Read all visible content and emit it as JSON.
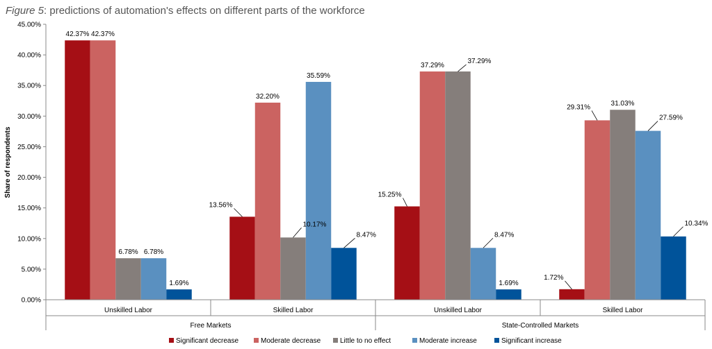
{
  "caption": {
    "figure": "Figure 5",
    "rest": ": predictions of automation's effects on different parts of the workforce"
  },
  "chart_data": {
    "type": "bar",
    "ylabel": "Share of respondents",
    "ylim": [
      0,
      45
    ],
    "yticks": [
      "0.00%",
      "5.00%",
      "10.00%",
      "15.00%",
      "20.00%",
      "25.00%",
      "30.00%",
      "35.00%",
      "40.00%",
      "45.00%"
    ],
    "grid": false,
    "legend_position": "bottom",
    "groups": [
      {
        "name": "Free Markets",
        "categories": [
          "Unskilled Labor",
          "Skilled Labor"
        ]
      },
      {
        "name": "State-Controlled Markets",
        "categories": [
          "Unskilled Labor",
          "Skilled Labor"
        ]
      }
    ],
    "categories": [
      "Unskilled Labor",
      "Skilled Labor",
      "Unskilled Labor",
      "Skilled Labor"
    ],
    "series": [
      {
        "name": "Significant decrease",
        "color": "#a50f15",
        "values": [
          42.37,
          13.56,
          15.25,
          1.72
        ],
        "labels": [
          "42.37%",
          "13.56%",
          "15.25%",
          "1.72%"
        ],
        "show_label": [
          true,
          true,
          true,
          true
        ]
      },
      {
        "name": "Moderate decrease",
        "color": "#cb6361",
        "values": [
          42.37,
          32.2,
          37.29,
          29.31
        ],
        "labels": [
          "42.37%",
          "32.20%",
          "37.29%",
          "29.31%"
        ],
        "show_label": [
          true,
          true,
          true,
          true
        ]
      },
      {
        "name": "Little to no effect",
        "color": "#857e7b",
        "values": [
          6.78,
          10.17,
          37.29,
          31.03
        ],
        "labels": [
          "6.78%",
          "10.17%",
          "37.29%",
          "31.03%"
        ],
        "show_label": [
          true,
          true,
          true,
          true
        ]
      },
      {
        "name": "Moderate increase",
        "color": "#5a90c0",
        "values": [
          6.78,
          35.59,
          8.47,
          27.59
        ],
        "labels": [
          "6.78%",
          "35.59%",
          "8.47%",
          "27.59%"
        ],
        "show_label": [
          true,
          true,
          true,
          true
        ]
      },
      {
        "name": "Significant increase",
        "color": "#00539a",
        "values": [
          1.69,
          8.47,
          1.69,
          10.34
        ],
        "labels": [
          "1.69%",
          "8.47%",
          "1.69%",
          "10.34%"
        ],
        "show_label": [
          true,
          true,
          true,
          true
        ]
      }
    ]
  }
}
